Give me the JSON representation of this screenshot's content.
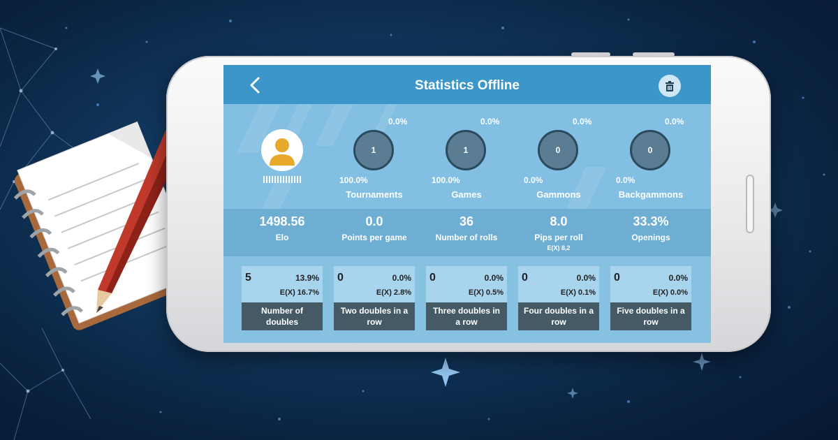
{
  "app": {
    "title": "Statistics Offline"
  },
  "header": {
    "back_icon": "chevron-left-icon",
    "trash_icon": "trash-icon"
  },
  "profile": {
    "avatar_icon": "user-avatar-icon"
  },
  "rings": [
    {
      "value": "1",
      "top_pct": "0.0%",
      "bottom_pct": "100.0%",
      "label": "Tournaments"
    },
    {
      "value": "1",
      "top_pct": "0.0%",
      "bottom_pct": "100.0%",
      "label": "Games"
    },
    {
      "value": "0",
      "top_pct": "0.0%",
      "bottom_pct": "0.0%",
      "label": "Gammons"
    },
    {
      "value": "0",
      "top_pct": "0.0%",
      "bottom_pct": "0.0%",
      "label": "Backgammons"
    }
  ],
  "metrics": [
    {
      "value": "1498.56",
      "label": "Elo",
      "sub": ""
    },
    {
      "value": "0.0",
      "label": "Points per game",
      "sub": ""
    },
    {
      "value": "36",
      "label": "Number of rolls",
      "sub": ""
    },
    {
      "value": "8.0",
      "label": "Pips per roll",
      "sub": "E(X) 8,2"
    },
    {
      "value": "33.3%",
      "label": "Openings",
      "sub": ""
    }
  ],
  "doubles": [
    {
      "count": "5",
      "pct": "13.9%",
      "expected": "E(X) 16.7%",
      "label": "Number of doubles"
    },
    {
      "count": "0",
      "pct": "0.0%",
      "expected": "E(X) 2.8%",
      "label": "Two doubles in a row"
    },
    {
      "count": "0",
      "pct": "0.0%",
      "expected": "E(X) 0.5%",
      "label": "Three doubles in a row"
    },
    {
      "count": "0",
      "pct": "0.0%",
      "expected": "E(X) 0.1%",
      "label": "Four doubles in a row"
    },
    {
      "count": "0",
      "pct": "0.0%",
      "expected": "E(X) 0.0%",
      "label": "Five doubles in a row"
    }
  ],
  "colors": {
    "header": "#3d96c9",
    "ring_fill": "#5a7d94",
    "card_label_bg": "#465a66"
  },
  "decor": {
    "notepad_icon": "notepad-icon",
    "pencil_icon": "pencil-icon"
  }
}
